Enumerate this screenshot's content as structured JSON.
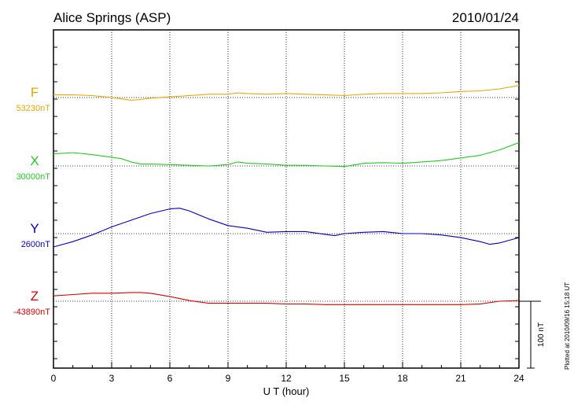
{
  "header": {
    "station": "Alice Springs (ASP)",
    "date": "2010/01/24",
    "plotted_at": "Plotted at 2010/09/16 15:18 UT"
  },
  "chart_data": {
    "type": "line",
    "xlabel": "U T (hour)",
    "xlim": [
      0,
      24
    ],
    "xticks": [
      0,
      3,
      6,
      9,
      12,
      15,
      18,
      21,
      24
    ],
    "scale_bar_label": "100 nT",
    "scale_bar_nt": 100,
    "units": "nT",
    "series": [
      {
        "name": "F",
        "baseline_label": "53230nT",
        "baseline_nt": 53230,
        "color": "#e8a800",
        "x": [
          0,
          1,
          2,
          3,
          3.5,
          4,
          4.5,
          5,
          6,
          7,
          8,
          9,
          9.5,
          10,
          11,
          12,
          13,
          14,
          15,
          16,
          17,
          18,
          19,
          20,
          21,
          22,
          23,
          24
        ],
        "y": [
          4,
          4,
          3,
          0,
          -2,
          -4,
          -3,
          -1,
          1,
          3,
          5,
          5,
          7,
          6,
          5,
          6,
          5,
          4,
          3,
          5,
          6,
          6,
          6,
          7,
          9,
          10,
          13,
          18
        ]
      },
      {
        "name": "X",
        "baseline_label": "30000nT",
        "baseline_nt": 30000,
        "color": "#22cc22",
        "x": [
          0,
          1,
          2,
          3,
          3.5,
          4,
          4.5,
          5,
          6,
          7,
          8,
          9,
          9.5,
          10,
          11,
          12,
          13,
          14,
          15,
          16,
          17,
          18,
          19,
          20,
          21,
          22,
          23,
          24
        ],
        "y": [
          18,
          20,
          17,
          13,
          11,
          6,
          3,
          3,
          2,
          1,
          0,
          2,
          6,
          4,
          3,
          1,
          1,
          0,
          -1,
          4,
          5,
          4,
          6,
          8,
          12,
          16,
          24,
          35
        ]
      },
      {
        "name": "Y",
        "baseline_label": "2600nT",
        "baseline_nt": 2600,
        "color": "#0000cc",
        "x": [
          0,
          1,
          2,
          3,
          4,
          5,
          6,
          6.5,
          7,
          8,
          9,
          10,
          11,
          12,
          13,
          14,
          14.5,
          15,
          16,
          17,
          18,
          19,
          20,
          21,
          22,
          22.5,
          23,
          24
        ],
        "y": [
          -20,
          -12,
          -2,
          10,
          20,
          30,
          37,
          38,
          34,
          22,
          12,
          8,
          2,
          3,
          3,
          -1,
          -3,
          0,
          2,
          3,
          0,
          0,
          -2,
          -6,
          -12,
          -16,
          -14,
          -6
        ]
      },
      {
        "name": "Z",
        "baseline_label": "-43890nT",
        "baseline_nt": -43890,
        "color": "#dd0000",
        "x": [
          0,
          1,
          2,
          3,
          4,
          4.5,
          5,
          6,
          7,
          8,
          9,
          10,
          11,
          12,
          13,
          14,
          15,
          16,
          17,
          18,
          19,
          20,
          21,
          22,
          23,
          24
        ],
        "y": [
          8,
          10,
          12,
          12,
          13,
          13,
          12,
          7,
          1,
          -3,
          -3,
          -3,
          -3,
          -4,
          -4,
          -5,
          -5,
          -5,
          -5,
          -5,
          -5,
          -5,
          -5,
          -4,
          0,
          1
        ]
      }
    ]
  }
}
